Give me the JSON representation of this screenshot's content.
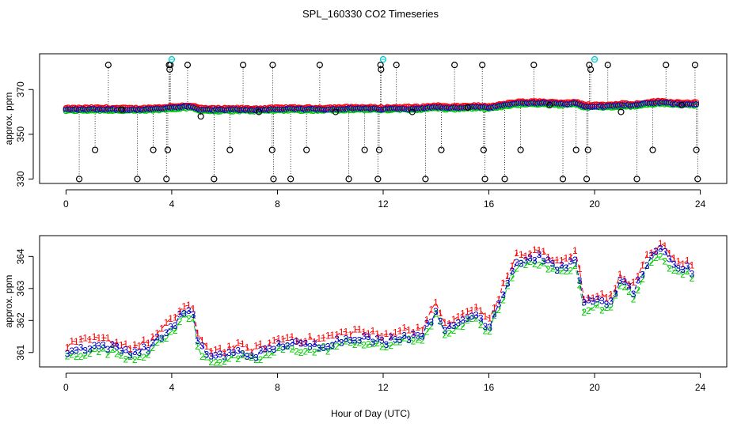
{
  "figure": {
    "title": "SPL_160330  CO2 Timeseries",
    "xlabel": "Hour of Day (UTC)"
  },
  "colors": {
    "series1": "#ff0000",
    "series2": "#00cc00",
    "series3": "#0000cc",
    "cyan": "#00cccc",
    "outlier": "#000000"
  },
  "chart_data": [
    {
      "type": "scatter",
      "title": "",
      "ylabel": "approx. ppm",
      "xlabel": "",
      "xlim": [
        -1,
        25
      ],
      "ylim": [
        328,
        386
      ],
      "xticks": [
        0,
        4,
        8,
        12,
        16,
        20,
        24
      ],
      "yticks": [
        330,
        350,
        370
      ],
      "baseline": [
        [
          0.0,
          361.0
        ],
        [
          0.5,
          361.1
        ],
        [
          1.0,
          361.2
        ],
        [
          1.5,
          361.2
        ],
        [
          2.0,
          361.1
        ],
        [
          2.5,
          361.0
        ],
        [
          3.0,
          361.1
        ],
        [
          3.5,
          361.4
        ],
        [
          4.0,
          361.8
        ],
        [
          4.5,
          362.3
        ],
        [
          4.8,
          362.2
        ],
        [
          5.0,
          361.2
        ],
        [
          5.5,
          360.9
        ],
        [
          6.0,
          360.9
        ],
        [
          6.5,
          361.0
        ],
        [
          7.0,
          360.9
        ],
        [
          7.5,
          361.0
        ],
        [
          8.0,
          361.2
        ],
        [
          8.5,
          361.3
        ],
        [
          9.0,
          361.2
        ],
        [
          9.5,
          361.2
        ],
        [
          10.0,
          361.3
        ],
        [
          10.5,
          361.4
        ],
        [
          11.0,
          361.5
        ],
        [
          11.5,
          361.4
        ],
        [
          12.0,
          361.3
        ],
        [
          12.5,
          361.5
        ],
        [
          13.0,
          361.5
        ],
        [
          13.5,
          361.6
        ],
        [
          14.0,
          362.3
        ],
        [
          14.3,
          361.8
        ],
        [
          14.6,
          361.7
        ],
        [
          15.0,
          362.0
        ],
        [
          15.5,
          362.2
        ],
        [
          16.0,
          361.8
        ],
        [
          16.5,
          362.8
        ],
        [
          17.0,
          363.8
        ],
        [
          17.5,
          363.9
        ],
        [
          18.0,
          364.0
        ],
        [
          18.5,
          363.6
        ],
        [
          19.0,
          363.7
        ],
        [
          19.3,
          364.0
        ],
        [
          19.6,
          362.5
        ],
        [
          20.0,
          362.6
        ],
        [
          20.5,
          362.5
        ],
        [
          21.0,
          363.2
        ],
        [
          21.5,
          362.9
        ],
        [
          22.0,
          363.8
        ],
        [
          22.5,
          364.2
        ],
        [
          23.0,
          363.7
        ],
        [
          23.5,
          363.6
        ],
        [
          23.8,
          363.5
        ]
      ],
      "cyan_points": [
        [
          4.0,
          383.5
        ],
        [
          12.0,
          383.5
        ],
        [
          20.0,
          383.5
        ]
      ],
      "outliers": [
        [
          0.5,
          330
        ],
        [
          1.1,
          343
        ],
        [
          1.6,
          381
        ],
        [
          2.1,
          361
        ],
        [
          2.7,
          330
        ],
        [
          3.3,
          343
        ],
        [
          3.8,
          330
        ],
        [
          3.85,
          343
        ],
        [
          3.9,
          381
        ],
        [
          3.92,
          379
        ],
        [
          3.95,
          381
        ],
        [
          4.6,
          381
        ],
        [
          5.1,
          358
        ],
        [
          5.6,
          330
        ],
        [
          6.2,
          343
        ],
        [
          6.7,
          381
        ],
        [
          7.3,
          360
        ],
        [
          7.8,
          343
        ],
        [
          7.82,
          381
        ],
        [
          7.85,
          330
        ],
        [
          8.5,
          330
        ],
        [
          9.1,
          343
        ],
        [
          9.6,
          381
        ],
        [
          10.2,
          360
        ],
        [
          10.7,
          330
        ],
        [
          11.3,
          343
        ],
        [
          11.8,
          330
        ],
        [
          11.85,
          343
        ],
        [
          11.9,
          381
        ],
        [
          11.92,
          379
        ],
        [
          12.5,
          381
        ],
        [
          13.1,
          360
        ],
        [
          13.6,
          330
        ],
        [
          14.2,
          343
        ],
        [
          14.7,
          381
        ],
        [
          15.2,
          362
        ],
        [
          15.75,
          381
        ],
        [
          15.8,
          343
        ],
        [
          15.85,
          330
        ],
        [
          16.6,
          330
        ],
        [
          17.2,
          343
        ],
        [
          17.7,
          381
        ],
        [
          18.3,
          363
        ],
        [
          18.8,
          330
        ],
        [
          19.3,
          343
        ],
        [
          19.7,
          330
        ],
        [
          19.75,
          343
        ],
        [
          19.8,
          381
        ],
        [
          19.85,
          379
        ],
        [
          20.5,
          381
        ],
        [
          21.0,
          360
        ],
        [
          21.6,
          330
        ],
        [
          22.2,
          343
        ],
        [
          22.7,
          381
        ],
        [
          23.3,
          363
        ],
        [
          23.8,
          381
        ],
        [
          23.85,
          343
        ],
        [
          23.9,
          330
        ]
      ]
    },
    {
      "type": "line",
      "title": "",
      "ylabel": "approx. ppm",
      "xlabel": "Hour of Day (UTC)",
      "xlim": [
        -1,
        25
      ],
      "ylim": [
        360.55,
        364.65
      ],
      "xticks": [
        0,
        4,
        8,
        12,
        16,
        20,
        24
      ],
      "yticks": [
        361,
        362,
        363,
        364
      ],
      "series": [
        {
          "name": "1",
          "marker": "1",
          "offset": 0.2
        },
        {
          "name": "2",
          "marker": "2",
          "offset": -0.15
        },
        {
          "name": "3",
          "marker": "3",
          "offset": 0.0
        }
      ],
      "baseline": [
        [
          0.0,
          361.0
        ],
        [
          0.5,
          361.1
        ],
        [
          1.0,
          361.2
        ],
        [
          1.5,
          361.2
        ],
        [
          2.0,
          361.1
        ],
        [
          2.5,
          361.0
        ],
        [
          3.0,
          361.1
        ],
        [
          3.5,
          361.4
        ],
        [
          4.0,
          361.8
        ],
        [
          4.5,
          362.3
        ],
        [
          4.8,
          362.2
        ],
        [
          5.0,
          361.2
        ],
        [
          5.5,
          360.9
        ],
        [
          6.0,
          360.9
        ],
        [
          6.5,
          361.0
        ],
        [
          7.0,
          360.9
        ],
        [
          7.5,
          361.0
        ],
        [
          8.0,
          361.2
        ],
        [
          8.5,
          361.3
        ],
        [
          9.0,
          361.2
        ],
        [
          9.5,
          361.2
        ],
        [
          10.0,
          361.3
        ],
        [
          10.5,
          361.4
        ],
        [
          11.0,
          361.5
        ],
        [
          11.5,
          361.4
        ],
        [
          12.0,
          361.3
        ],
        [
          12.5,
          361.5
        ],
        [
          13.0,
          361.5
        ],
        [
          13.5,
          361.6
        ],
        [
          14.0,
          362.3
        ],
        [
          14.3,
          361.8
        ],
        [
          14.6,
          361.7
        ],
        [
          15.0,
          362.0
        ],
        [
          15.5,
          362.2
        ],
        [
          16.0,
          361.8
        ],
        [
          16.5,
          362.8
        ],
        [
          17.0,
          363.8
        ],
        [
          17.5,
          363.9
        ],
        [
          18.0,
          364.0
        ],
        [
          18.5,
          363.6
        ],
        [
          19.0,
          363.7
        ],
        [
          19.3,
          364.0
        ],
        [
          19.6,
          362.5
        ],
        [
          20.0,
          362.6
        ],
        [
          20.5,
          362.5
        ],
        [
          21.0,
          363.2
        ],
        [
          21.5,
          362.9
        ],
        [
          22.0,
          363.8
        ],
        [
          22.5,
          364.2
        ],
        [
          23.0,
          363.7
        ],
        [
          23.5,
          363.6
        ],
        [
          23.8,
          363.5
        ]
      ]
    }
  ]
}
